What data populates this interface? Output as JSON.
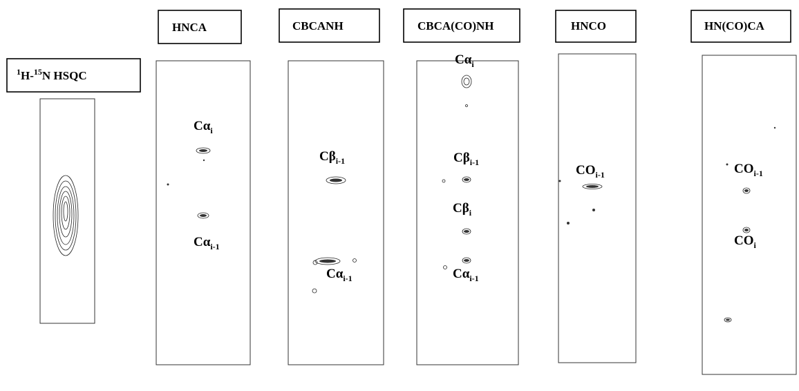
{
  "panels": [
    {
      "title": {
        "parts": [
          {
            "sup": "1"
          },
          {
            "text": "H-"
          },
          {
            "sup": "15"
          },
          {
            "text": "N HSQC"
          }
        ]
      },
      "peaks": []
    },
    {
      "title": "HNCA",
      "peaks": [
        {
          "base": "Cα",
          "sub": "i"
        },
        {
          "base": "Cα",
          "sub": "i-1"
        }
      ]
    },
    {
      "title": "CBCANH",
      "peaks": [
        {
          "base": "Cβ",
          "sub": "i-1"
        },
        {
          "base": "Cα",
          "sub": "i-1"
        }
      ]
    },
    {
      "title": "CBCA(CO)NH",
      "peaks": [
        {
          "base": "Cα",
          "sub": "i"
        },
        {
          "base": "Cβ",
          "sub": "i-1"
        },
        {
          "base": "Cβ",
          "sub": "i"
        },
        {
          "base": "Cα",
          "sub": "i-1"
        }
      ]
    },
    {
      "title": "HNCO",
      "peaks": [
        {
          "base": "CO",
          "sub": "i-1"
        }
      ]
    },
    {
      "title": "HN(CO)CA",
      "peaks": [
        {
          "base": "CO",
          "sub": "i-1"
        },
        {
          "base": "CO",
          "sub": "i"
        }
      ]
    }
  ]
}
